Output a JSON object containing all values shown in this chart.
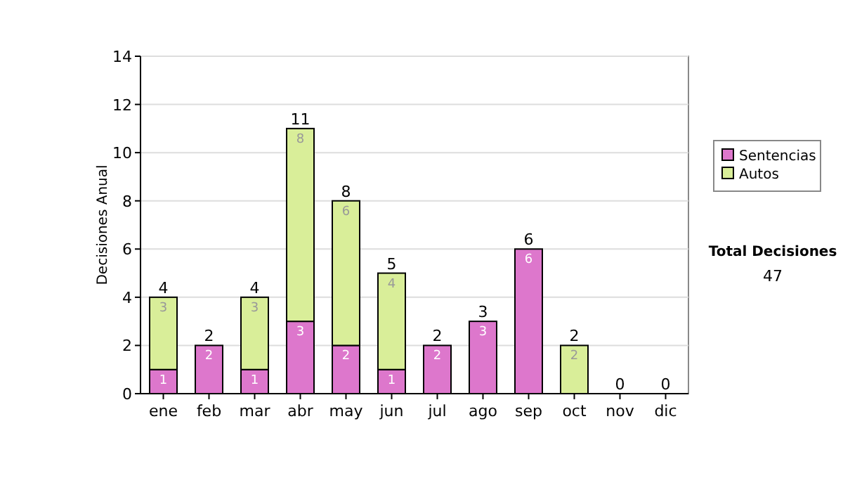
{
  "chart_data": {
    "type": "bar",
    "stacked": true,
    "ylabel": "Decisiones Anual",
    "categories": [
      "ene",
      "feb",
      "mar",
      "abr",
      "may",
      "jun",
      "jul",
      "ago",
      "sep",
      "oct",
      "nov",
      "dic"
    ],
    "series": [
      {
        "name": "Sentencias",
        "color": "#dd77cc",
        "values": [
          1,
          2,
          1,
          3,
          2,
          1,
          2,
          3,
          6,
          0,
          0,
          0
        ],
        "value_labels": [
          "1",
          "2",
          "1",
          "3",
          "2",
          "1",
          "2",
          "3",
          "6",
          null,
          null,
          null
        ]
      },
      {
        "name": "Autos",
        "color": "#d9ee99",
        "values": [
          3,
          0,
          3,
          8,
          6,
          4,
          0,
          0,
          0,
          2,
          0,
          0
        ],
        "value_labels": [
          "3",
          null,
          "3",
          "8",
          "6",
          "4",
          null,
          null,
          null,
          "2",
          null,
          null
        ]
      }
    ],
    "totals": [
      "4",
      "2",
      "4",
      "11",
      "8",
      "5",
      "2",
      "3",
      "6",
      "2",
      "0",
      "0"
    ],
    "ylim": [
      0,
      14
    ],
    "yticks": [
      0,
      2,
      4,
      6,
      8,
      10,
      12,
      14
    ],
    "grid": "y",
    "legend": "right",
    "annotations": [
      "Total Decisiones",
      "47"
    ]
  }
}
